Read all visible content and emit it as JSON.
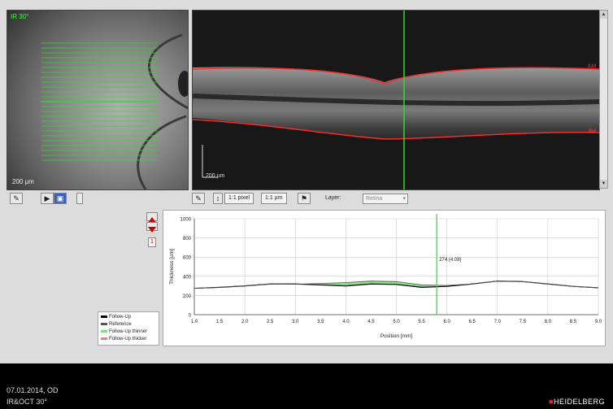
{
  "fundus": {
    "label_top": "IR 30°",
    "label_bottom": "200 µm"
  },
  "bscan": {
    "scale_label": "200 µm",
    "label_ilm": "ILM",
    "label_bm": "BM"
  },
  "toolbar": {
    "scale_1to1": "1:1 pixel",
    "scale_um": "1:1 µm",
    "layer_label": "Layer:",
    "layer_value": "Retina"
  },
  "chart_selector": {
    "number": "1"
  },
  "legend": {
    "items": [
      {
        "label": "Follow-Up",
        "color": "#000000"
      },
      {
        "label": "Reference",
        "color": "#555555"
      },
      {
        "label": "Follow-Up thinner",
        "color": "#7ee07e"
      },
      {
        "label": "Follow-Up thicker",
        "color": "#f08080"
      }
    ]
  },
  "footer": {
    "date_line": "07.01.2014, OD",
    "modality_line": "IR&OCT 30°",
    "brand": "HEIDELBERG"
  },
  "colors": {
    "scan_line": "#2ddc2d",
    "segmentation": "#ff2a2a",
    "thinner_fill": "#7ee07e"
  },
  "chart_data": {
    "type": "line",
    "ylabel": "Thickness [µm]",
    "xlabel": "Position [mm]",
    "ylim": [
      0,
      1000
    ],
    "xlim": [
      1.0,
      9.0
    ],
    "yticks": [
      "0",
      "200",
      "400",
      "600",
      "800",
      "1000"
    ],
    "xticks": [
      "1.0",
      "1.5",
      "2.0",
      "2.5",
      "3.0",
      "3.5",
      "4.0",
      "4.5",
      "5.0",
      "5.5",
      "6.0",
      "6.5",
      "7.0",
      "7.5",
      "8.0",
      "8.5",
      "9.0"
    ],
    "grid": true,
    "cursor": {
      "x": 5.8,
      "label": "274 (4.08)"
    },
    "series": [
      {
        "name": "Follow-Up",
        "x": [
          1.0,
          1.5,
          2.0,
          2.5,
          3.0,
          3.5,
          4.0,
          4.5,
          5.0,
          5.5,
          6.0,
          6.5,
          7.0,
          7.5,
          8.0,
          8.5,
          9.0
        ],
        "values": [
          275,
          285,
          300,
          320,
          320,
          310,
          300,
          320,
          315,
          285,
          295,
          320,
          350,
          345,
          320,
          295,
          280
        ]
      },
      {
        "name": "Reference",
        "x": [
          1.0,
          1.5,
          2.0,
          2.5,
          3.0,
          3.5,
          4.0,
          4.5,
          5.0,
          5.5,
          6.0,
          6.5,
          7.0,
          7.5,
          8.0,
          8.5,
          9.0
        ],
        "values": [
          275,
          285,
          300,
          320,
          318,
          325,
          335,
          350,
          345,
          310,
          305,
          320,
          350,
          345,
          320,
          295,
          280
        ]
      }
    ]
  }
}
